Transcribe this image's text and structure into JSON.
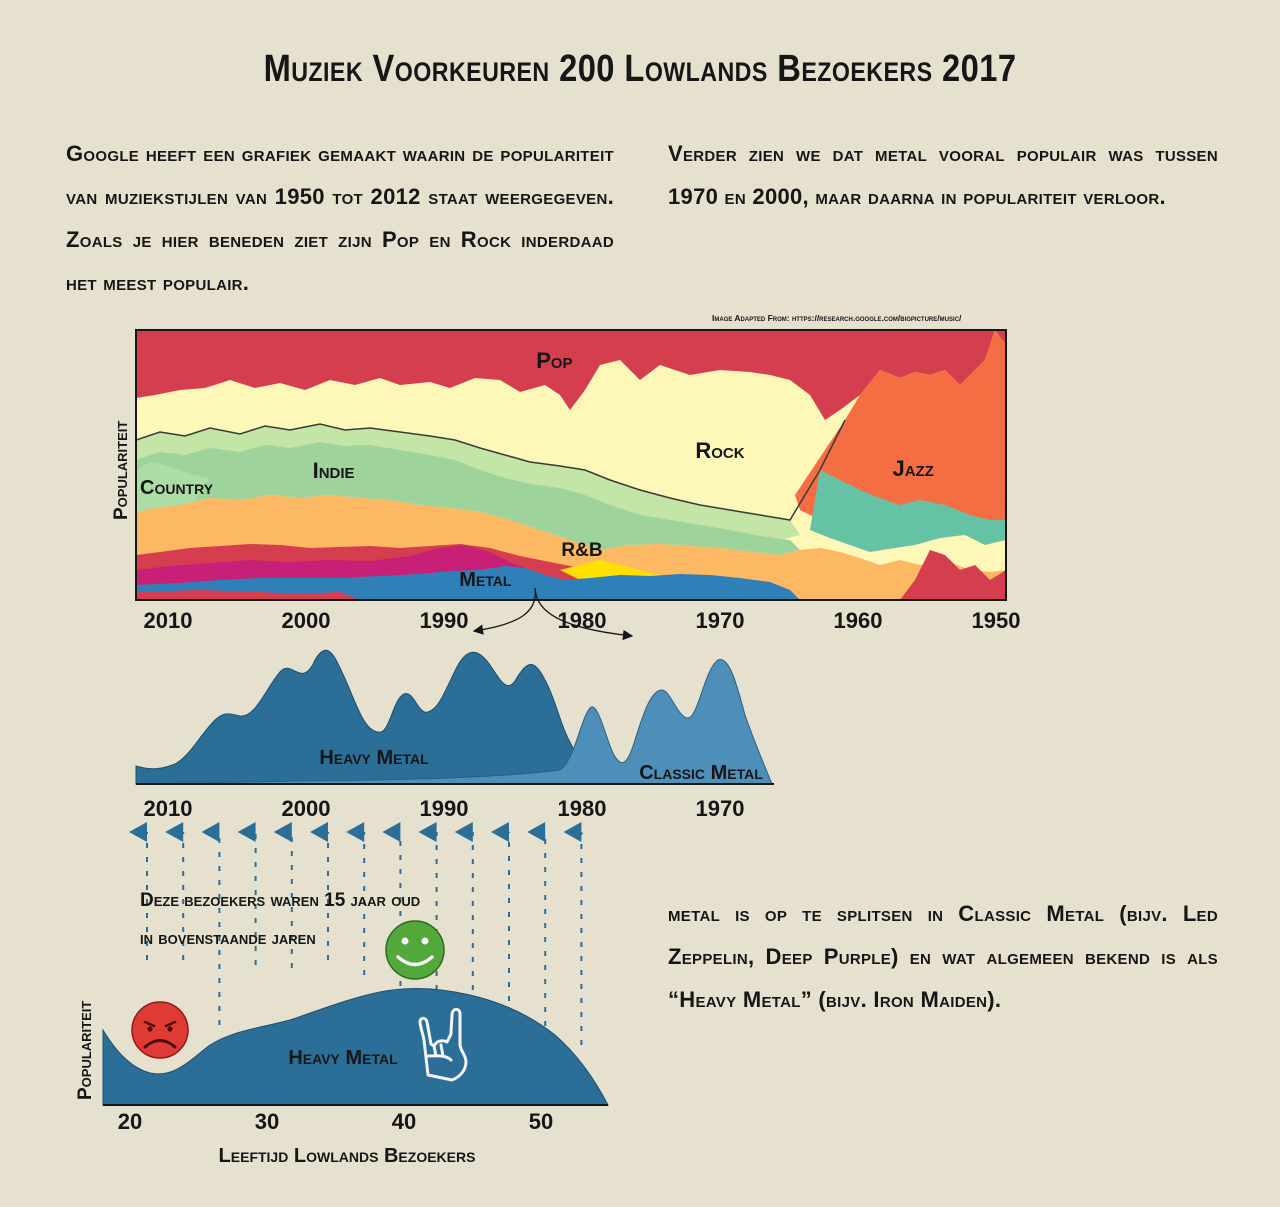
{
  "title": "Muziek Voorkeuren 200 Lowlands Bezoekers 2017",
  "paragraphs": {
    "left": "Google heeft een grafiek gemaakt waarin de populariteit van muziekstijlen van 1950 tot 2012 staat weergegeven. Zoals je hier beneden ziet zijn Pop en Rock inderdaad het meest populair.",
    "right": "Verder zien we dat metal vooral populair was tussen 1970 en 2000, maar daarna in populariteit verloor.",
    "metal": "metal is op te splitsen in Classic Metal (bijv. Led Zeppelin, Deep Purple) en wat algemeen bekend is als “Heavy Metal” (bijv. Iron Maiden)."
  },
  "credit": "Image Adapted From: https://research.google.com/bigpicture/music/",
  "note": {
    "line1": "Deze bezoekers waren 15 jaar oud",
    "line2": "in bovenstaande jaren"
  },
  "icons": {
    "sad": "sad-face-icon",
    "happy": "happy-face-icon",
    "horns": "rock-horns-hand-icon"
  },
  "colors": {
    "background": "#e6e0cf",
    "pop": "#d53e4f",
    "rock": "#fdf7b8",
    "jazz": "#f46d43",
    "indie": "#9ed39c",
    "metal": "#2f7fb8",
    "heavy_metal": "#2b6f99",
    "classic_metal": "#4d8fb9",
    "sad": "#df3b34",
    "happy": "#52a83a"
  },
  "chart_data": [
    {
      "type": "area",
      "ylabel": "Populariteit",
      "x_ticks": [
        "2010",
        "2000",
        "1990",
        "1980",
        "1970",
        "1960",
        "1950"
      ],
      "x_reversed": true,
      "stacked": true,
      "genre_labels": [
        {
          "name": "Pop",
          "year": 1982
        },
        {
          "name": "Rock",
          "year": 1970
        },
        {
          "name": "Jazz",
          "year": 1956
        },
        {
          "name": "Country",
          "year": 2010
        },
        {
          "name": "Indie",
          "year": 1998
        },
        {
          "name": "R&B",
          "year": 1980
        },
        {
          "name": "Metal",
          "year": 1987
        }
      ]
    },
    {
      "type": "area",
      "x_ticks": [
        "2010",
        "2000",
        "1990",
        "1980",
        "1970"
      ],
      "x_reversed": true,
      "series": [
        {
          "name": "Heavy Metal"
        },
        {
          "name": "Classic Metal"
        }
      ]
    },
    {
      "type": "area",
      "xlabel": "Leeftijd Lowlands Bezoekers",
      "ylabel": "Populariteit",
      "x_ticks": [
        "20",
        "30",
        "40",
        "50"
      ],
      "series": [
        {
          "name": "Heavy Metal"
        }
      ]
    }
  ]
}
